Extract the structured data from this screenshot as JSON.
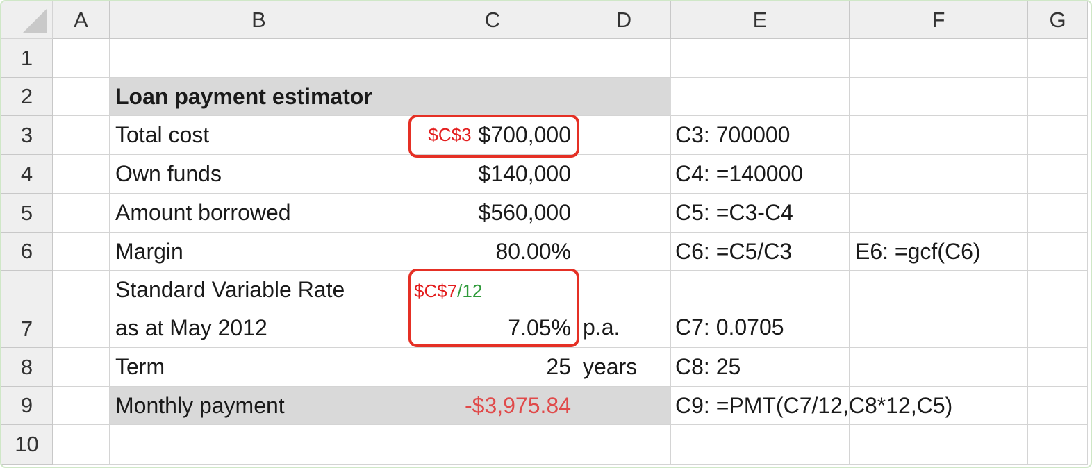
{
  "columns": [
    "A",
    "B",
    "C",
    "D",
    "E",
    "F",
    "G"
  ],
  "rows": [
    "1",
    "2",
    "3",
    "4",
    "5",
    "6",
    "7",
    "8",
    "9",
    "10"
  ],
  "cells": {
    "B2": "Loan payment estimator",
    "B3": "Total cost",
    "C3_ref": "$C$3",
    "C3": "$700,000",
    "E3": "C3:  700000",
    "B4": "Own funds",
    "C4": "$140,000",
    "E4": "C4:  =140000",
    "B5": "Amount borrowed",
    "C5": "$560,000",
    "E5": "C5:  =C3-C4",
    "B6": "Margin",
    "C6": "80.00%",
    "E6": "C6:  =C5/C3",
    "F6": "E6:  =gcf(C6)",
    "B7_line1": "Standard Variable Rate",
    "B7_line2": "as at May 2012",
    "C7_ref": "$C$7",
    "C7_ref_suffix": "/12",
    "C7": "7.05%",
    "D7": "p.a.",
    "E7": "C7:  0.0705",
    "B8": "Term",
    "C8": "25",
    "D8": "years",
    "E8": "C8:  25",
    "B9": "Monthly payment",
    "C9": "-$3,975.84",
    "E9": "C9:  =PMT(C7/12,C8*12,C5)"
  },
  "colors": {
    "highlight_border": "#e53025",
    "negative_value": "#e04a4a",
    "reference_red": "#e31e1e",
    "reference_green": "#2e9a3a",
    "shaded_cell": "#d9d9d9"
  }
}
